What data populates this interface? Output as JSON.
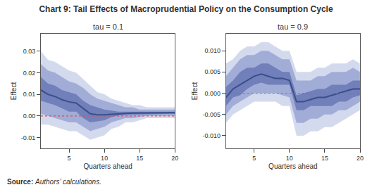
{
  "title": "Chart 9: Tail Effects of Macroprudential Policy on the Consumption Cycle",
  "source_label": "Source:",
  "source_text": "Authors’ calculations.",
  "chart_data": [
    {
      "type": "line",
      "subtitle": "tau = 0.1",
      "xlabel": "Quarters ahead",
      "ylabel": "Effect",
      "x": [
        1,
        2,
        3,
        4,
        5,
        6,
        7,
        8,
        9,
        10,
        11,
        12,
        13,
        14,
        15,
        16,
        17,
        18,
        19,
        20
      ],
      "values": [
        0.012,
        0.01,
        0.009,
        0.0075,
        0.0065,
        0.006,
        0.0035,
        0.001,
        0.0005,
        0.0005,
        0.0008,
        0.001,
        0.0012,
        0.0013,
        0.0013,
        0.0014,
        0.0014,
        0.0015,
        0.0015,
        0.0015
      ],
      "color": "#3a4f8a",
      "bands": [
        {
          "lo": [
            -0.004,
            -0.004,
            -0.005,
            -0.006,
            -0.007,
            -0.007,
            -0.009,
            -0.011,
            -0.01,
            -0.009,
            -0.006,
            -0.005,
            -0.003,
            -0.003,
            -0.002,
            -0.001,
            -0.001,
            -0.001,
            -0.001,
            -0.001
          ],
          "hi": [
            0.03,
            0.026,
            0.025,
            0.023,
            0.021,
            0.02,
            0.017,
            0.014,
            0.011,
            0.01,
            0.008,
            0.007,
            0.006,
            0.005,
            0.005,
            0.004,
            0.004,
            0.004,
            0.004,
            0.004
          ],
          "color": "#b0bce0"
        },
        {
          "lo": [
            0.001,
            0.0,
            -0.001,
            -0.002,
            -0.003,
            -0.003,
            -0.005,
            -0.007,
            -0.006,
            -0.005,
            -0.003,
            -0.002,
            -0.001,
            -0.001,
            -0.0005,
            0.0,
            0.0,
            0.0,
            0.0,
            0.0
          ],
          "hi": [
            0.024,
            0.021,
            0.02,
            0.018,
            0.016,
            0.015,
            0.013,
            0.01,
            0.008,
            0.007,
            0.006,
            0.005,
            0.004,
            0.004,
            0.003,
            0.003,
            0.003,
            0.003,
            0.003,
            0.003
          ],
          "color": "#8090c8"
        },
        {
          "lo": [
            0.007,
            0.006,
            0.005,
            0.0035,
            0.002,
            0.002,
            -0.001,
            -0.003,
            -0.0025,
            -0.002,
            -0.0005,
            0.0002,
            0.0005,
            0.0006,
            0.0007,
            0.0008,
            0.0009,
            0.0009,
            0.001,
            0.001
          ],
          "hi": [
            0.018,
            0.015,
            0.014,
            0.012,
            0.011,
            0.01,
            0.007,
            0.005,
            0.004,
            0.003,
            0.0025,
            0.002,
            0.002,
            0.002,
            0.002,
            0.002,
            0.002,
            0.002,
            0.002,
            0.002
          ],
          "color": "#6070b0"
        }
      ],
      "reference_line": {
        "value": 0,
        "color": "#e05050",
        "line_style": "dotted"
      },
      "xlim": [
        1,
        20
      ],
      "xticks": [
        5,
        10,
        15,
        20
      ],
      "ylim": [
        -0.015,
        0.038
      ],
      "yticks": [
        -0.01,
        {
          "value": 0,
          "label": "0.00"
        },
        0.01,
        0.02,
        0.03
      ],
      "grid": false,
      "legend": false
    },
    {
      "type": "line",
      "subtitle": "tau = 0.9",
      "xlabel": "Quarters ahead",
      "ylabel": "Effect",
      "x": [
        1,
        2,
        3,
        4,
        5,
        6,
        7,
        8,
        9,
        10,
        11,
        12,
        13,
        14,
        15,
        16,
        17,
        18,
        19,
        20
      ],
      "values": [
        -0.001,
        0.001,
        0.002,
        0.003,
        0.004,
        0.0045,
        0.004,
        0.0035,
        0.0035,
        0.003,
        -0.002,
        -0.002,
        -0.0015,
        -0.001,
        -0.001,
        -0.0005,
        0.0,
        0.0005,
        0.001,
        0.001
      ],
      "color": "#3a4f8a",
      "bands": [
        {
          "lo": [
            -0.007,
            -0.005,
            -0.004,
            -0.003,
            -0.002,
            -0.002,
            -0.002,
            -0.002,
            -0.003,
            -0.003,
            -0.01,
            -0.01,
            -0.009,
            -0.009,
            -0.008,
            -0.008,
            -0.007,
            -0.006,
            -0.005,
            -0.004
          ],
          "hi": [
            0.007,
            0.008,
            0.01,
            0.011,
            0.011,
            0.012,
            0.012,
            0.011,
            0.01,
            0.01,
            0.005,
            0.005,
            0.005,
            0.006,
            0.006,
            0.007,
            0.007,
            0.007,
            0.008,
            0.007
          ],
          "color": "#b0bce0"
        },
        {
          "lo": [
            -0.005,
            -0.003,
            -0.002,
            -0.001,
            0.0,
            0.0,
            0.0,
            0.0,
            -0.0005,
            -0.001,
            -0.007,
            -0.007,
            -0.006,
            -0.006,
            -0.005,
            -0.005,
            -0.004,
            -0.004,
            -0.003,
            -0.002
          ],
          "hi": [
            0.004,
            0.006,
            0.008,
            0.009,
            0.009,
            0.01,
            0.01,
            0.009,
            0.008,
            0.008,
            0.003,
            0.003,
            0.003,
            0.004,
            0.004,
            0.005,
            0.005,
            0.005,
            0.006,
            0.005
          ],
          "color": "#8090c8"
        },
        {
          "lo": [
            -0.003,
            -0.001,
            -0.0005,
            0.001,
            0.002,
            0.0025,
            0.002,
            0.002,
            0.002,
            0.002,
            -0.004,
            -0.004,
            -0.003,
            -0.003,
            -0.003,
            -0.003,
            -0.002,
            -0.002,
            -0.001,
            -0.0005
          ],
          "hi": [
            0.0015,
            0.003,
            0.005,
            0.006,
            0.006,
            0.007,
            0.007,
            0.006,
            0.005,
            0.005,
            -0.0005,
            0.0,
            0.0005,
            0.001,
            0.001,
            0.002,
            0.002,
            0.002,
            0.003,
            0.003
          ],
          "color": "#6070b0"
        }
      ],
      "reference_line": {
        "value": 0,
        "color": "#e05050",
        "line_style": "dotted"
      },
      "xlim": [
        1,
        20
      ],
      "xticks": [
        5,
        10,
        15,
        20
      ],
      "ylim": [
        -0.013,
        0.014
      ],
      "yticks": [
        {
          "value": -0.01,
          "label": "-0.010"
        },
        -0.005,
        {
          "value": 0.0,
          "label": "0.000"
        },
        0.005,
        {
          "value": 0.01,
          "label": "0.010"
        }
      ],
      "grid": false,
      "legend": false
    }
  ]
}
